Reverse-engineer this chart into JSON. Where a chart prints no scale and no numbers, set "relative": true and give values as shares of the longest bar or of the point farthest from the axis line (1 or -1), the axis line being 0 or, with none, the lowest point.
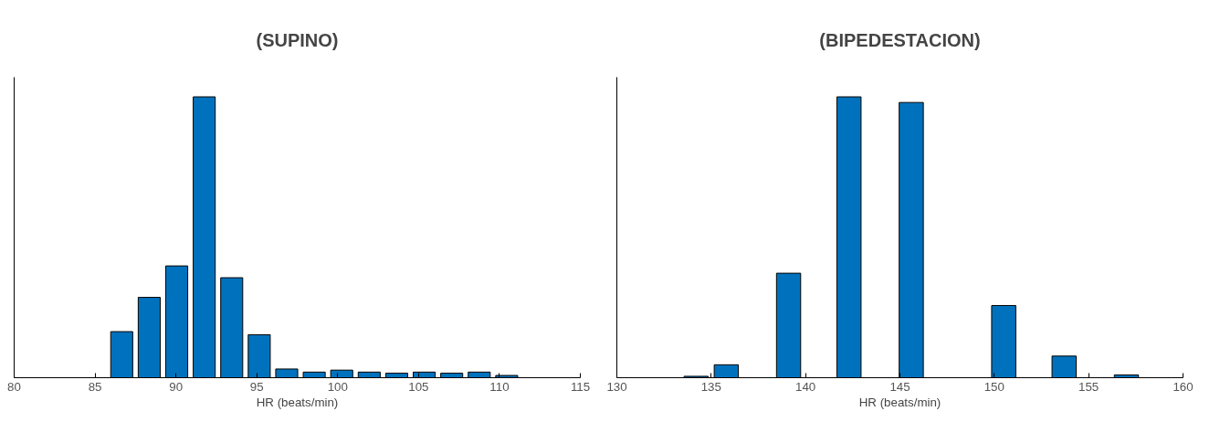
{
  "chart_data": [
    {
      "type": "bar",
      "title": "(SUPINO)",
      "xlabel": "HR (beats/min)",
      "relative": true,
      "color": "#0072bd",
      "xlim": [
        80,
        115
      ],
      "xticks": [
        80,
        85,
        90,
        95,
        100,
        105,
        110,
        115
      ],
      "x": [
        86.65,
        88.35,
        90.05,
        91.75,
        93.45,
        95.15,
        96.85,
        98.55,
        100.25,
        101.95,
        103.65,
        105.35,
        107.05,
        108.75,
        110.45
      ],
      "values": [
        0.164,
        0.286,
        0.398,
        1.0,
        0.356,
        0.153,
        0.031,
        0.02,
        0.027,
        0.02,
        0.016,
        0.02,
        0.016,
        0.02,
        0.008
      ]
    },
    {
      "type": "bar",
      "title": "(BIPEDESTACION)",
      "xlabel": "HR (beats/min)",
      "relative": true,
      "color": "#0072bd",
      "xlim": [
        130,
        160
      ],
      "xticks": [
        130,
        135,
        140,
        145,
        150,
        155,
        160
      ],
      "x": [
        134.2,
        135.8,
        139.1,
        142.3,
        145.6,
        150.5,
        153.7,
        157.0
      ],
      "values": [
        0.005,
        0.046,
        0.372,
        1.0,
        0.98,
        0.257,
        0.077,
        0.01
      ]
    }
  ]
}
